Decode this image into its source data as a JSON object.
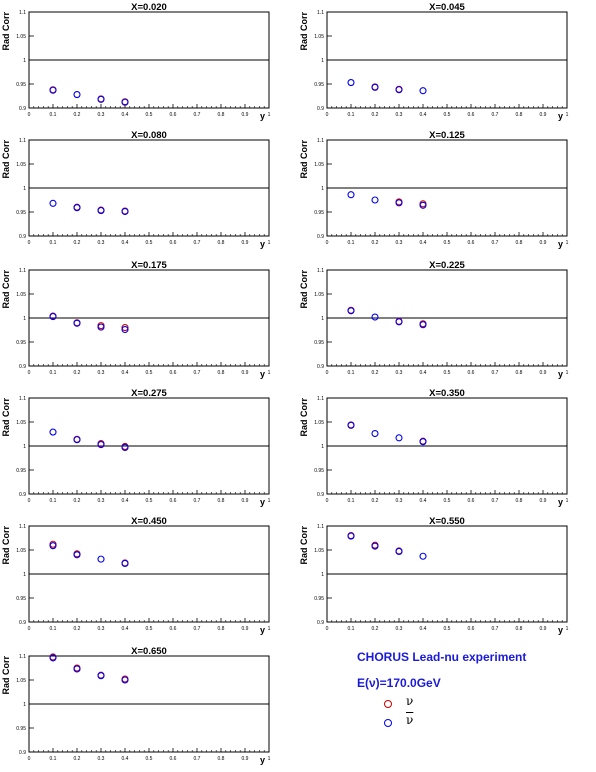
{
  "legend": {
    "experiment": "CHORUS Lead-nu experiment",
    "energy": "E(ν)=170.0GeV",
    "nu_label": "ν",
    "nubar_label": "ν",
    "nu_color": "#cc0000",
    "nubar_color": "#0000ee"
  },
  "chart_data": [
    {
      "type": "scatter",
      "title": "X=0.020",
      "xlabel": "y",
      "ylabel": "Rad Corr",
      "xlim": [
        0,
        1
      ],
      "ylim": [
        0.9,
        1.1
      ],
      "xticks": [
        "0",
        "0.1",
        "0.2",
        "0.3",
        "0.4",
        "0.5",
        "0.6",
        "0.7",
        "0.8",
        "0.9",
        "1"
      ],
      "yticks": [
        "0.9",
        "0.95",
        "1",
        "1.05",
        "1.1"
      ],
      "reference_line": 1,
      "series": [
        {
          "values": [
            [
              0.1,
              0.938
            ],
            [
              0.3,
              0.919
            ],
            [
              0.4,
              0.913
            ]
          ],
          "color": "#cc0000"
        },
        {
          "values": [
            [
              0.1,
              0.937
            ],
            [
              0.2,
              0.928
            ],
            [
              0.3,
              0.918
            ],
            [
              0.4,
              0.912
            ]
          ],
          "color": "#0000ee"
        }
      ]
    },
    {
      "type": "scatter",
      "title": "X=0.045",
      "xlabel": "y",
      "ylabel": "Rad Corr",
      "xlim": [
        0,
        1
      ],
      "ylim": [
        0.9,
        1.1
      ],
      "xticks": [
        "0",
        "0.1",
        "0.2",
        "0.3",
        "0.4",
        "0.5",
        "0.6",
        "0.7",
        "0.8",
        "0.9",
        "1"
      ],
      "yticks": [
        "0.9",
        "0.95",
        "1",
        "1.05",
        "1.1"
      ],
      "reference_line": 1,
      "series": [
        {
          "values": [
            [
              0.2,
              0.944
            ],
            [
              0.3,
              0.939
            ]
          ],
          "color": "#cc0000"
        },
        {
          "values": [
            [
              0.1,
              0.953
            ],
            [
              0.2,
              0.943
            ],
            [
              0.3,
              0.938
            ],
            [
              0.4,
              0.936
            ]
          ],
          "color": "#0000ee"
        }
      ]
    },
    {
      "type": "scatter",
      "title": "X=0.080",
      "xlabel": "y",
      "ylabel": "Rad Corr",
      "xlim": [
        0,
        1
      ],
      "ylim": [
        0.9,
        1.1
      ],
      "xticks": [
        "0",
        "0.1",
        "0.2",
        "0.3",
        "0.4",
        "0.5",
        "0.6",
        "0.7",
        "0.8",
        "0.9",
        "1"
      ],
      "yticks": [
        "0.9",
        "0.95",
        "1",
        "1.05",
        "1.1"
      ],
      "reference_line": 1,
      "series": [
        {
          "values": [
            [
              0.2,
              0.96
            ],
            [
              0.3,
              0.954
            ],
            [
              0.4,
              0.952
            ]
          ],
          "color": "#cc0000"
        },
        {
          "values": [
            [
              0.1,
              0.968
            ],
            [
              0.2,
              0.959
            ],
            [
              0.3,
              0.953
            ],
            [
              0.4,
              0.951
            ]
          ],
          "color": "#0000ee"
        }
      ]
    },
    {
      "type": "scatter",
      "title": "X=0.125",
      "xlabel": "y",
      "ylabel": "Rad Corr",
      "xlim": [
        0,
        1
      ],
      "ylim": [
        0.9,
        1.1
      ],
      "xticks": [
        "0",
        "0.1",
        "0.2",
        "0.3",
        "0.4",
        "0.5",
        "0.6",
        "0.7",
        "0.8",
        "0.9",
        "1"
      ],
      "yticks": [
        "0.9",
        "0.95",
        "1",
        "1.05",
        "1.1"
      ],
      "reference_line": 1,
      "series": [
        {
          "values": [
            [
              0.3,
              0.971
            ],
            [
              0.4,
              0.967
            ]
          ],
          "color": "#cc0000"
        },
        {
          "values": [
            [
              0.1,
              0.986
            ],
            [
              0.2,
              0.975
            ],
            [
              0.3,
              0.969
            ],
            [
              0.4,
              0.964
            ]
          ],
          "color": "#0000ee"
        }
      ]
    },
    {
      "type": "scatter",
      "title": "X=0.175",
      "xlabel": "y",
      "ylabel": "Rad Corr",
      "xlim": [
        0,
        1
      ],
      "ylim": [
        0.9,
        1.1
      ],
      "xticks": [
        "0",
        "0.1",
        "0.2",
        "0.3",
        "0.4",
        "0.5",
        "0.6",
        "0.7",
        "0.8",
        "0.9",
        "1"
      ],
      "yticks": [
        "0.9",
        "0.95",
        "1",
        "1.05",
        "1.1"
      ],
      "reference_line": 1,
      "series": [
        {
          "values": [
            [
              0.1,
              1.004
            ],
            [
              0.2,
              0.99
            ],
            [
              0.3,
              0.984
            ],
            [
              0.4,
              0.98
            ]
          ],
          "color": "#cc0000"
        },
        {
          "values": [
            [
              0.1,
              1.003
            ],
            [
              0.2,
              0.989
            ],
            [
              0.3,
              0.981
            ],
            [
              0.4,
              0.976
            ]
          ],
          "color": "#0000ee"
        }
      ]
    },
    {
      "type": "scatter",
      "title": "X=0.225",
      "xlabel": "y",
      "ylabel": "Rad Corr",
      "xlim": [
        0,
        1
      ],
      "ylim": [
        0.9,
        1.1
      ],
      "xticks": [
        "0",
        "0.1",
        "0.2",
        "0.3",
        "0.4",
        "0.5",
        "0.6",
        "0.7",
        "0.8",
        "0.9",
        "1"
      ],
      "yticks": [
        "0.9",
        "0.95",
        "1",
        "1.05",
        "1.1"
      ],
      "reference_line": 1,
      "series": [
        {
          "values": [
            [
              0.1,
              1.016
            ],
            [
              0.3,
              0.993
            ],
            [
              0.4,
              0.988
            ]
          ],
          "color": "#cc0000"
        },
        {
          "values": [
            [
              0.1,
              1.015
            ],
            [
              0.2,
              1.002
            ],
            [
              0.3,
              0.992
            ],
            [
              0.4,
              0.986
            ]
          ],
          "color": "#0000ee"
        }
      ]
    },
    {
      "type": "scatter",
      "title": "X=0.275",
      "xlabel": "y",
      "ylabel": "Rad Corr",
      "xlim": [
        0,
        1
      ],
      "ylim": [
        0.9,
        1.1
      ],
      "xticks": [
        "0",
        "0.1",
        "0.2",
        "0.3",
        "0.4",
        "0.5",
        "0.6",
        "0.7",
        "0.8",
        "0.9",
        "1"
      ],
      "yticks": [
        "0.9",
        "0.95",
        "1",
        "1.05",
        "1.1"
      ],
      "reference_line": 1,
      "series": [
        {
          "values": [
            [
              0.2,
              1.014
            ],
            [
              0.3,
              1.005
            ],
            [
              0.4,
              0.999
            ]
          ],
          "color": "#cc0000"
        },
        {
          "values": [
            [
              0.1,
              1.029
            ],
            [
              0.2,
              1.013
            ],
            [
              0.3,
              1.003
            ],
            [
              0.4,
              0.997
            ]
          ],
          "color": "#0000ee"
        }
      ]
    },
    {
      "type": "scatter",
      "title": "X=0.350",
      "xlabel": "y",
      "ylabel": "Rad Corr",
      "xlim": [
        0,
        1
      ],
      "ylim": [
        0.9,
        1.1
      ],
      "xticks": [
        "0",
        "0.1",
        "0.2",
        "0.3",
        "0.4",
        "0.5",
        "0.6",
        "0.7",
        "0.8",
        "0.9",
        "1"
      ],
      "yticks": [
        "0.9",
        "0.95",
        "1",
        "1.05",
        "1.1"
      ],
      "reference_line": 1,
      "series": [
        {
          "values": [
            [
              0.1,
              1.044
            ],
            [
              0.4,
              1.01
            ]
          ],
          "color": "#cc0000"
        },
        {
          "values": [
            [
              0.1,
              1.043
            ],
            [
              0.2,
              1.026
            ],
            [
              0.3,
              1.017
            ],
            [
              0.4,
              1.009
            ]
          ],
          "color": "#0000ee"
        }
      ]
    },
    {
      "type": "scatter",
      "title": "X=0.450",
      "xlabel": "y",
      "ylabel": "Rad Corr",
      "xlim": [
        0,
        1
      ],
      "ylim": [
        0.9,
        1.1
      ],
      "xticks": [
        "0",
        "0.1",
        "0.2",
        "0.3",
        "0.4",
        "0.5",
        "0.6",
        "0.7",
        "0.8",
        "0.9",
        "1"
      ],
      "yticks": [
        "0.9",
        "0.95",
        "1",
        "1.05",
        "1.1"
      ],
      "reference_line": 1,
      "series": [
        {
          "values": [
            [
              0.1,
              1.062
            ],
            [
              0.2,
              1.042
            ],
            [
              0.4,
              1.023
            ]
          ],
          "color": "#cc0000"
        },
        {
          "values": [
            [
              0.1,
              1.059
            ],
            [
              0.2,
              1.04
            ],
            [
              0.3,
              1.031
            ],
            [
              0.4,
              1.022
            ]
          ],
          "color": "#0000ee"
        }
      ]
    },
    {
      "type": "scatter",
      "title": "X=0.550",
      "xlabel": "y",
      "ylabel": "Rad Corr",
      "xlim": [
        0,
        1
      ],
      "ylim": [
        0.9,
        1.1
      ],
      "xticks": [
        "0",
        "0.1",
        "0.2",
        "0.3",
        "0.4",
        "0.5",
        "0.6",
        "0.7",
        "0.8",
        "0.9",
        "1"
      ],
      "yticks": [
        "0.9",
        "0.95",
        "1",
        "1.05",
        "1.1"
      ],
      "reference_line": 1,
      "series": [
        {
          "values": [
            [
              0.1,
              1.08
            ],
            [
              0.2,
              1.06
            ],
            [
              0.3,
              1.048
            ]
          ],
          "color": "#cc0000"
        },
        {
          "values": [
            [
              0.1,
              1.079
            ],
            [
              0.2,
              1.058
            ],
            [
              0.3,
              1.047
            ],
            [
              0.4,
              1.037
            ]
          ],
          "color": "#0000ee"
        }
      ]
    },
    {
      "type": "scatter",
      "title": "X=0.650",
      "xlabel": "y",
      "ylabel": "Rad Corr",
      "xlim": [
        0,
        1
      ],
      "ylim": [
        0.9,
        1.1
      ],
      "xticks": [
        "0",
        "0.1",
        "0.2",
        "0.3",
        "0.4",
        "0.5",
        "0.6",
        "0.7",
        "0.8",
        "0.9",
        "1"
      ],
      "yticks": [
        "0.9",
        "0.95",
        "1",
        "1.05",
        "1.1"
      ],
      "reference_line": 1,
      "series": [
        {
          "values": [
            [
              0.1,
              1.098
            ],
            [
              0.2,
              1.075
            ],
            [
              0.3,
              1.06
            ],
            [
              0.4,
              1.052
            ]
          ],
          "color": "#cc0000"
        },
        {
          "values": [
            [
              0.1,
              1.096
            ],
            [
              0.2,
              1.073
            ],
            [
              0.3,
              1.059
            ],
            [
              0.4,
              1.05
            ]
          ],
          "color": "#0000ee"
        }
      ]
    }
  ]
}
